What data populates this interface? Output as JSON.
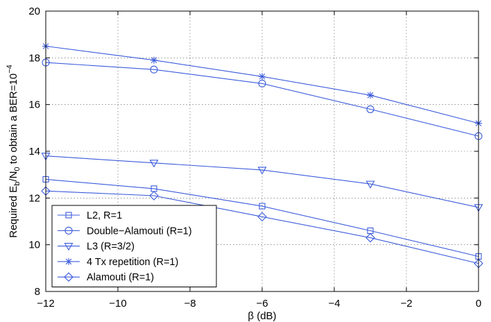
{
  "chart_data": {
    "type": "line",
    "title": "",
    "xlabel": "β (dB)",
    "ylabel": {
      "base": "Required E",
      "sub1": "b",
      "mid": "/N",
      "sub2": "0",
      "after": " to obtain a BER=10",
      "sup": "−4"
    },
    "xlim": [
      -12,
      0
    ],
    "ylim": [
      8,
      20
    ],
    "xticks": [
      -12,
      -10,
      -8,
      -6,
      -4,
      -2,
      0
    ],
    "yticks": [
      8,
      10,
      12,
      14,
      16,
      18,
      20
    ],
    "xtick_labels": [
      "−12",
      "−10",
      "−8",
      "−6",
      "−4",
      "−2",
      "0"
    ],
    "ytick_labels": [
      "8",
      "10",
      "12",
      "14",
      "16",
      "18",
      "20"
    ],
    "grid": true,
    "legend_position": "bottom-left",
    "color": "#3b5bdb",
    "x": [
      -12,
      -9,
      -6,
      -3,
      0
    ],
    "series": [
      {
        "name": "L2, R=1",
        "marker": "square",
        "values": [
          12.8,
          12.4,
          11.65,
          10.6,
          9.5
        ]
      },
      {
        "name": "Double−Alamouti (R=1)",
        "marker": "circle",
        "values": [
          17.8,
          17.5,
          16.9,
          15.8,
          14.65
        ]
      },
      {
        "name": "L3 (R=3/2)",
        "marker": "triangle-down",
        "values": [
          13.8,
          13.5,
          13.2,
          12.6,
          11.6
        ]
      },
      {
        "name": "4 Tx repetition (R=1)",
        "marker": "asterisk",
        "values": [
          18.5,
          17.9,
          17.2,
          16.4,
          15.2
        ]
      },
      {
        "name": "Alamouti (R=1)",
        "marker": "diamond",
        "values": [
          12.3,
          12.1,
          11.2,
          10.3,
          9.2
        ]
      }
    ]
  }
}
